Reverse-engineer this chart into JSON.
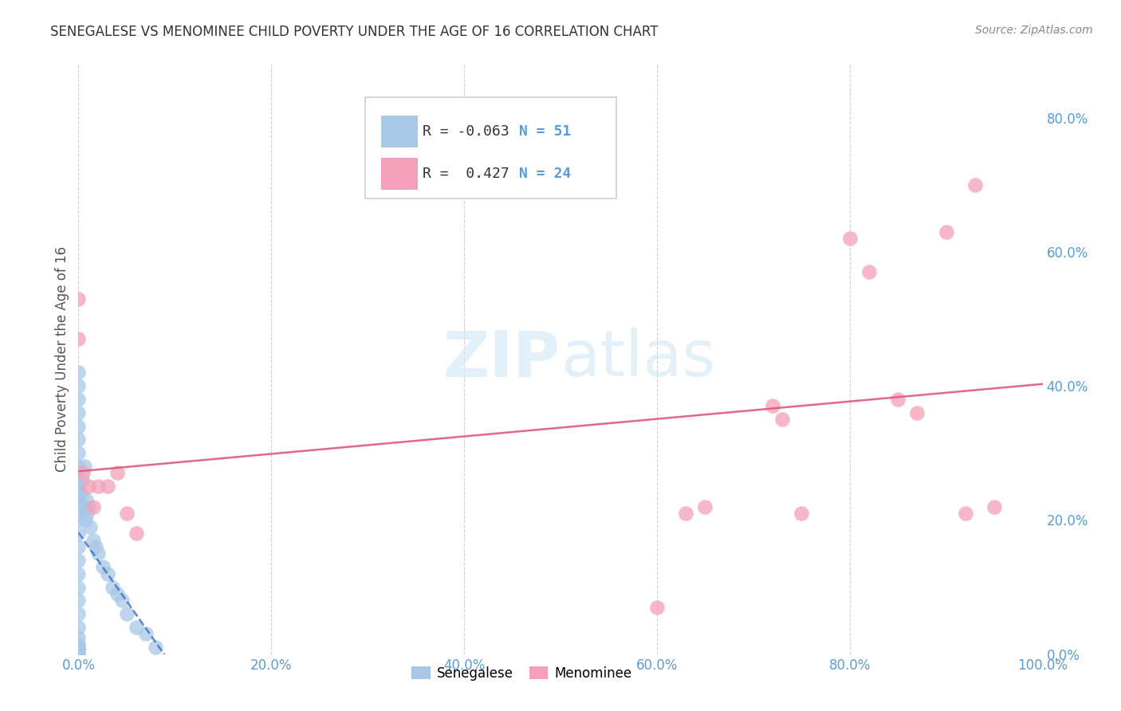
{
  "title": "SENEGALESE VS MENOMINEE CHILD POVERTY UNDER THE AGE OF 16 CORRELATION CHART",
  "source": "Source: ZipAtlas.com",
  "R_senegalese": -0.063,
  "N_senegalese": 51,
  "R_menominee": 0.427,
  "N_menominee": 24,
  "senegalese_color": "#a8c8e8",
  "menominee_color": "#f4a0b8",
  "senegalese_line_color": "#4472c4",
  "menominee_line_color": "#e05878",
  "watermark_color": "#d0e8f5",
  "tick_color": "#5b9bd5",
  "grid_color": "#d0d0d0",
  "ylabel_color": "#555555",
  "title_color": "#333333",
  "source_color": "#888888",
  "sen_x": [
    0.0,
    0.0,
    0.0,
    0.0,
    0.0,
    0.0,
    0.0,
    0.0,
    0.0,
    0.0,
    0.0,
    0.0,
    0.0,
    0.0,
    0.0,
    0.0,
    0.0,
    0.0,
    0.0,
    0.0,
    0.0,
    0.0,
    0.0,
    0.0,
    0.0,
    0.0,
    0.0,
    0.0,
    0.0,
    0.0,
    0.003,
    0.004,
    0.005,
    0.006,
    0.007,
    0.008,
    0.009,
    0.01,
    0.012,
    0.015,
    0.018,
    0.02,
    0.025,
    0.03,
    0.035,
    0.04,
    0.045,
    0.05,
    0.06,
    0.07,
    0.08
  ],
  "sen_y": [
    0.42,
    0.4,
    0.38,
    0.36,
    0.34,
    0.32,
    0.3,
    0.28,
    0.26,
    0.24,
    0.22,
    0.2,
    0.18,
    0.16,
    0.14,
    0.12,
    0.1,
    0.08,
    0.06,
    0.04,
    0.025,
    0.015,
    0.01,
    0.005,
    0.0,
    0.0,
    0.0,
    0.005,
    0.01,
    0.25,
    0.24,
    0.26,
    0.22,
    0.28,
    0.2,
    0.23,
    0.21,
    0.22,
    0.19,
    0.17,
    0.16,
    0.15,
    0.13,
    0.12,
    0.1,
    0.09,
    0.08,
    0.06,
    0.04,
    0.03,
    0.01
  ],
  "men_x": [
    0.0,
    0.0,
    0.005,
    0.01,
    0.015,
    0.02,
    0.03,
    0.04,
    0.05,
    0.06,
    0.6,
    0.63,
    0.65,
    0.72,
    0.73,
    0.75,
    0.8,
    0.82,
    0.85,
    0.87,
    0.9,
    0.92,
    0.93,
    0.95
  ],
  "men_y": [
    0.53,
    0.47,
    0.27,
    0.25,
    0.22,
    0.25,
    0.25,
    0.27,
    0.21,
    0.18,
    0.07,
    0.21,
    0.22,
    0.37,
    0.35,
    0.21,
    0.62,
    0.57,
    0.38,
    0.36,
    0.63,
    0.21,
    0.7,
    0.22
  ],
  "xlim": [
    0.0,
    1.0
  ],
  "ylim": [
    0.0,
    0.88
  ],
  "xticks": [
    0.0,
    0.2,
    0.4,
    0.6,
    0.8,
    1.0
  ],
  "yticks_right": [
    0.0,
    0.2,
    0.4,
    0.6,
    0.8
  ],
  "xtick_labels": [
    "0.0%",
    "20.0%",
    "40.0%",
    "60.0%",
    "80.0%",
    "100.0%"
  ],
  "ytick_labels_right": [
    "0.0%",
    "20.0%",
    "40.0%",
    "60.0%",
    "80.0%"
  ],
  "legend_label_senegalese": "Senegalese",
  "legend_label_menominee": "Menominee",
  "ylabel": "Child Poverty Under the Age of 16"
}
